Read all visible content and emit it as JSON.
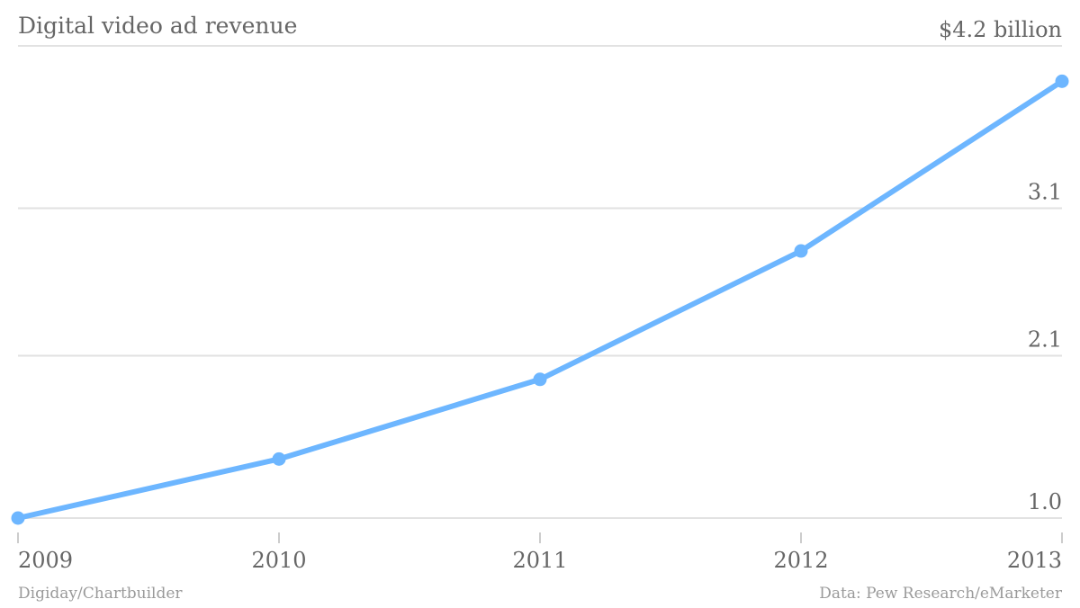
{
  "chart_data": {
    "type": "line",
    "title": "Digital video ad revenue",
    "categories": [
      "2009",
      "2010",
      "2011",
      "2012",
      "2013"
    ],
    "series": [
      {
        "values": [
          1.0,
          1.4,
          1.94,
          2.81,
          3.96
        ]
      }
    ],
    "ylim": [
      1.0,
      4.2
    ],
    "yticks": [
      {
        "value": 1.0,
        "label": "1.0"
      },
      {
        "value": 2.1,
        "label": "2.1"
      },
      {
        "value": 3.1,
        "label": "3.1"
      },
      {
        "value": 4.2,
        "label": "$4.2 billion"
      }
    ],
    "grid": true,
    "line_color": "#6db6ff",
    "grid_color": "#e2e2e2",
    "axis_color": "#cccccc",
    "text_color": "#666666"
  },
  "footer": {
    "credit": "Digiday/Chartbuilder",
    "source": "Data: Pew Research/eMarketer"
  }
}
